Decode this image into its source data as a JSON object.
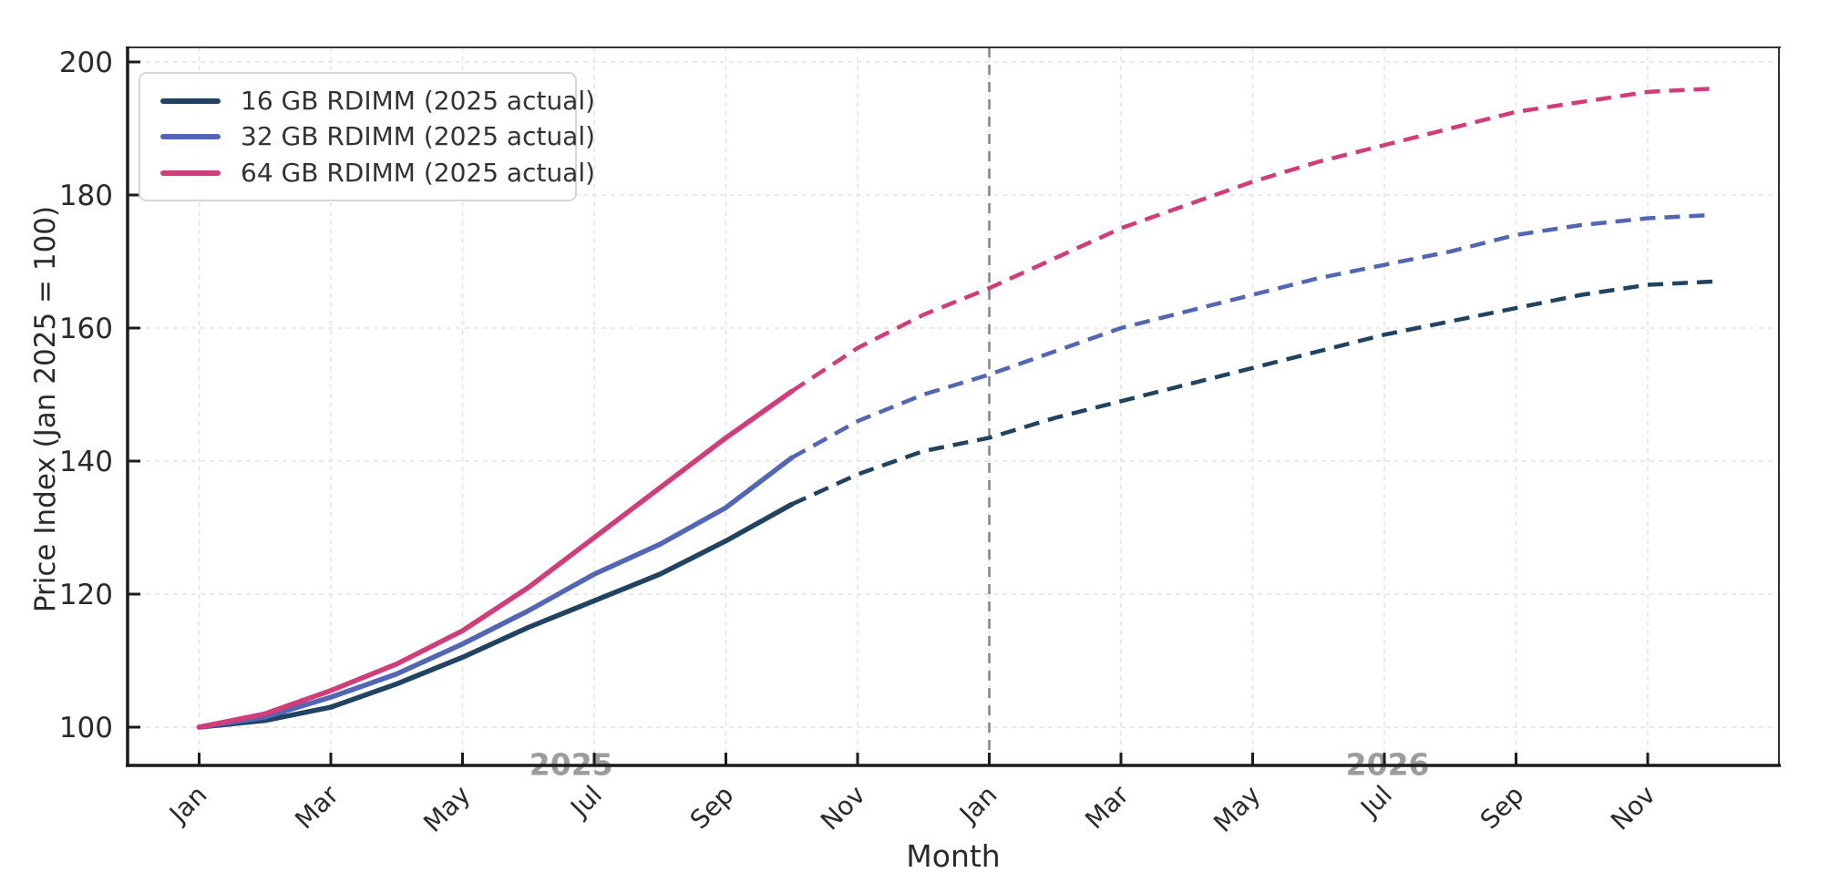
{
  "chart_data": {
    "type": "line",
    "title": "",
    "xlabel": "Month",
    "ylabel": "Price Index (Jan 2025 = 100)",
    "x_categories": [
      "Jan 2025",
      "Feb 2025",
      "Mar 2025",
      "Apr 2025",
      "May 2025",
      "Jun 2025",
      "Jul 2025",
      "Aug 2025",
      "Sep 2025",
      "Oct 2025",
      "Nov 2025",
      "Dec 2025",
      "Jan 2026",
      "Feb 2026",
      "Mar 2026",
      "Apr 2026",
      "May 2026",
      "Jun 2026",
      "Jul 2026",
      "Aug 2026",
      "Sep 2026",
      "Oct 2026",
      "Nov 2026",
      "Dec 2026"
    ],
    "x_tick_positions": [
      0,
      2,
      4,
      6,
      8,
      10,
      12,
      14,
      16,
      18,
      20,
      22
    ],
    "x_tick_labels": [
      "Jan",
      "Mar",
      "May",
      "Jul",
      "Sep",
      "Nov",
      "Jan",
      "Mar",
      "May",
      "Jul",
      "Sep",
      "Nov"
    ],
    "y_ticks": [
      100,
      120,
      140,
      160,
      180,
      200
    ],
    "ylim": [
      94,
      202
    ],
    "grid": true,
    "grid_color": "#e3e3e3",
    "axis_color": "#1c1c1c",
    "tick_label_color": "#2b2b2b",
    "actual_month_span": "Jan 2025 - Oct 2025",
    "forecast_month_span": "Oct 2025 - Dec 2026",
    "forecast_start_index": 9,
    "forecast_boundary": {
      "x_index": 12,
      "color": "#848484",
      "style": "dashed"
    },
    "year_annotations": [
      {
        "label": "2025",
        "x_index": 5.65,
        "color": "#9c9c9c"
      },
      {
        "label": "2026",
        "x_index": 18.05,
        "color": "#9c9c9c"
      }
    ],
    "legend_position": "upper-left",
    "series": [
      {
        "name": "16 GB RDIMM (2025 actual)",
        "color": "#1f4361",
        "actual": [
          100,
          101,
          103,
          106.5,
          110.5,
          115,
          119,
          123,
          128,
          133.5
        ],
        "forecast": [
          133.5,
          138,
          141.5,
          143.5,
          146.5,
          149,
          151.5,
          154,
          156.5,
          159,
          161,
          163,
          165,
          166.5,
          167
        ]
      },
      {
        "name": "32 GB RDIMM (2025 actual)",
        "color": "#5167b6",
        "actual": [
          100,
          101.5,
          104.5,
          108,
          112.5,
          117.5,
          123,
          127.5,
          133,
          140.5
        ],
        "forecast": [
          140.5,
          146,
          150,
          153,
          156.5,
          160,
          162.5,
          165,
          167.5,
          169.5,
          171.5,
          174,
          175.5,
          176.5,
          177
        ]
      },
      {
        "name": "64 GB RDIMM (2025 actual)",
        "color": "#d23c78",
        "actual": [
          100,
          102,
          105.5,
          109.5,
          114.5,
          121,
          128.5,
          136,
          143.5,
          150.5
        ],
        "forecast": [
          150.5,
          157,
          162,
          166,
          170.5,
          175,
          178.5,
          182,
          185,
          187.5,
          190,
          192.5,
          194,
          195.5,
          196
        ]
      }
    ]
  }
}
